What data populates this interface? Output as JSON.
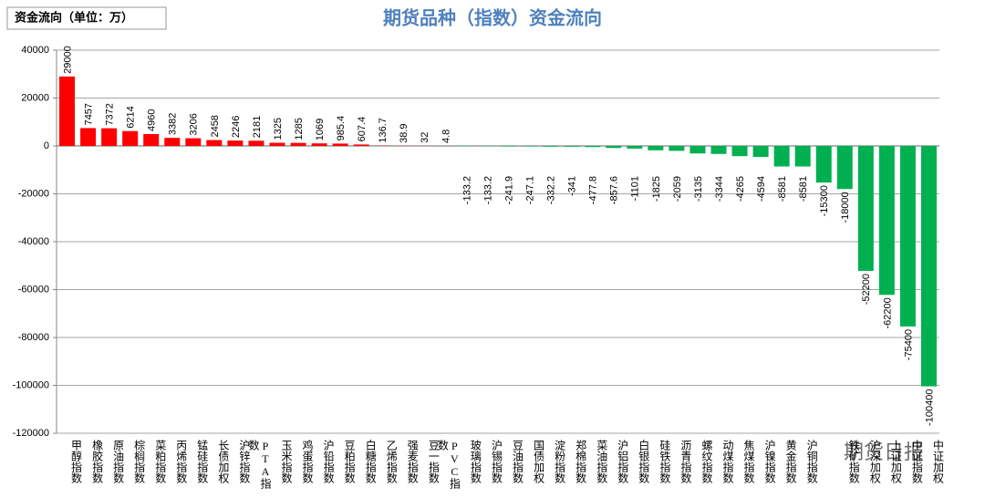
{
  "chart_data": {
    "type": "bar",
    "title": "期货品种（指数）资金流向",
    "legend_label": "资金流向（单位：万）",
    "watermark": "期货日报",
    "categories": [
      "甲醇指数",
      "橡胶指数",
      "原油指数",
      "棕榈指数",
      "菜粕指数",
      "丙烯指数",
      "锰硅指数",
      "长债加权",
      "沪锌指数",
      "PTA指数",
      "玉米指数",
      "鸡蛋指数",
      "沪铅指数",
      "豆粕指数",
      "白糖指数",
      "乙烯指数",
      "强麦指数",
      "豆一指数",
      "PVC指数",
      "玻璃指数",
      "沪锡指数",
      "豆油指数",
      "国债加权",
      "淀粉指数",
      "郑棉指数",
      "菜油指数",
      "沪铝指数",
      "白银指数",
      "硅铁指数",
      "沥青指数",
      "螺纹指数",
      "动煤指数",
      "焦煤指数",
      "沪镍指数",
      "黄金指数",
      "沪铜指数",
      null,
      "铁矿指数",
      "沪深加权",
      "上证加权",
      "中证指数",
      "中证加权"
    ],
    "values": [
      29000,
      7457,
      7372,
      6214,
      4960,
      3382,
      3206,
      2458,
      2246,
      2181,
      1325,
      1285,
      1069,
      985.4,
      607.4,
      136.7,
      38.9,
      32,
      4.8,
      -133.2,
      -133.2,
      -241.9,
      -247.1,
      -332.2,
      -341,
      -477.8,
      -857.6,
      -1101,
      -1825,
      -2059,
      -3135,
      -3344,
      -4265,
      -4594,
      -8581,
      -8581,
      -15300,
      -18000,
      -52200,
      -62200,
      -75400,
      -100400
    ],
    "positive_color": "#ff0000",
    "negative_color": "#00b050",
    "ylim": [
      -120000,
      40000
    ],
    "yticks": [
      -120000,
      -100000,
      -80000,
      -60000,
      -40000,
      -20000,
      0,
      20000,
      40000
    ],
    "grid": true
  }
}
